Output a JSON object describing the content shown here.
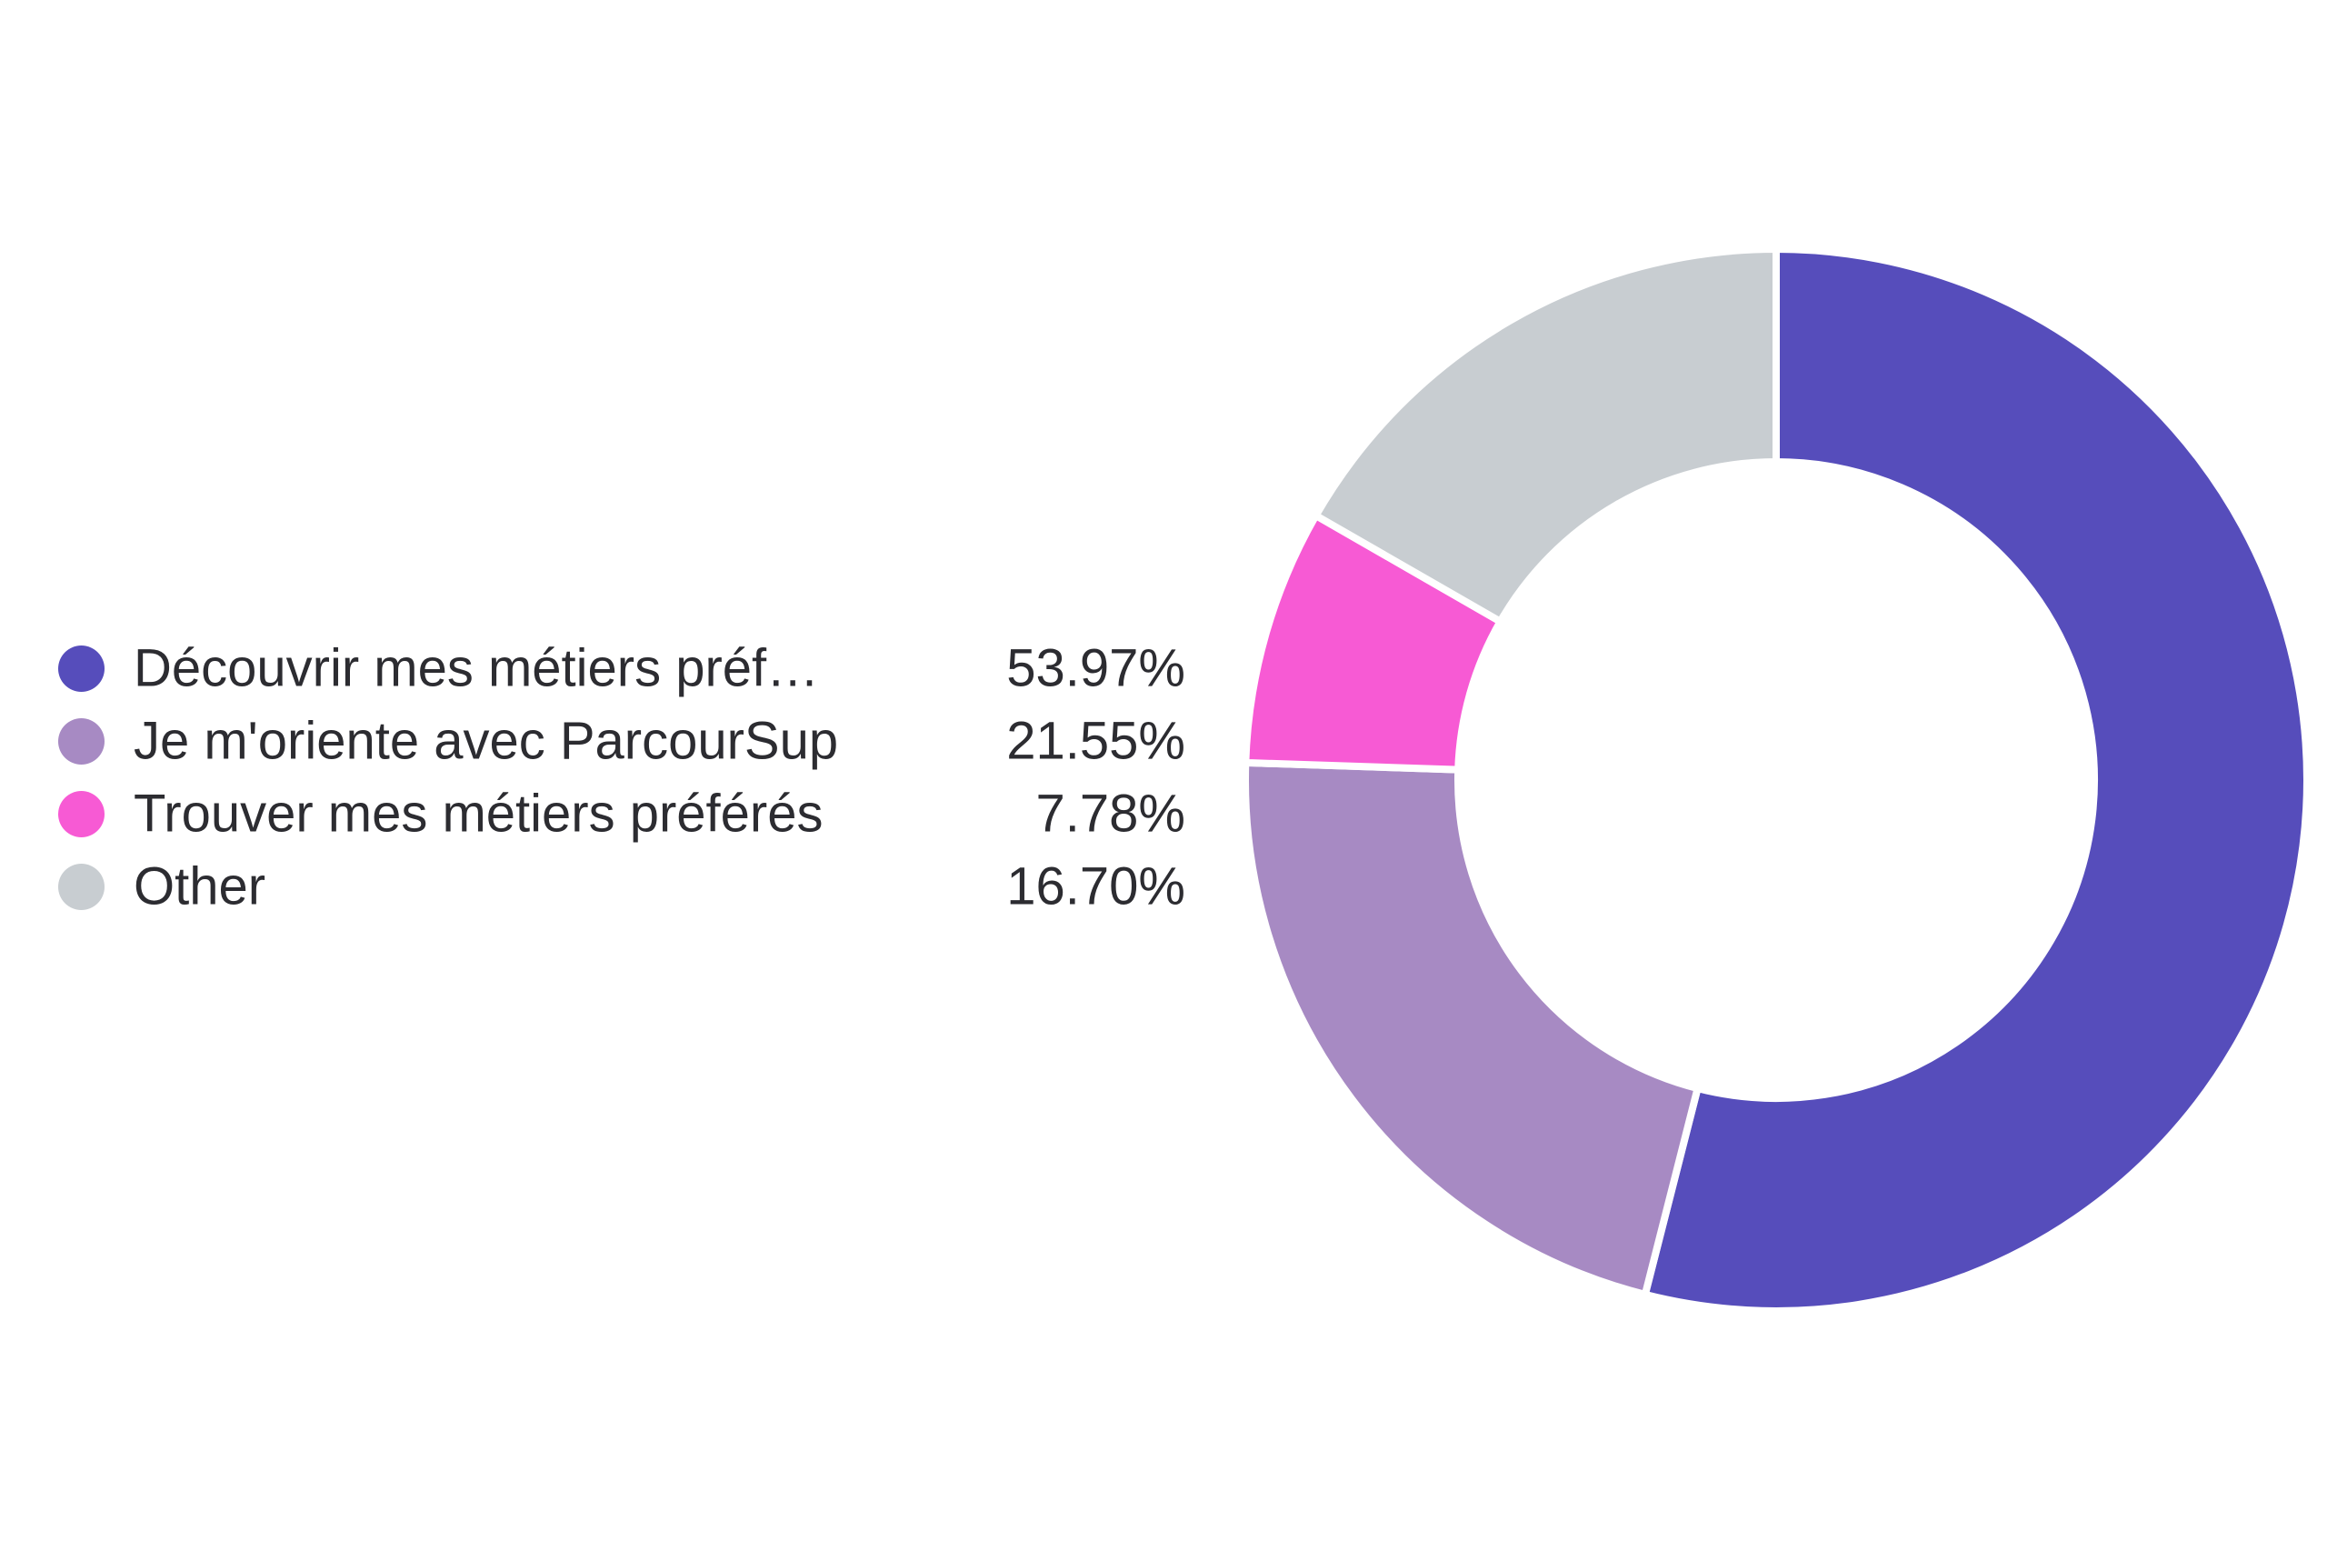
{
  "chart_data": {
    "type": "pie",
    "variant": "donut",
    "categories": [
      "Découvrir mes métiers préf…",
      "Je m'oriente avec ParcourSup",
      "Trouver mes métiers préférés",
      "Other"
    ],
    "values": [
      53.97,
      21.55,
      7.78,
      16.7
    ],
    "value_labels": [
      "53.97%",
      "21.55%",
      "7.78%",
      "16.70%"
    ],
    "colors": [
      "#564dbb",
      "#a78ac3",
      "#f75ad4",
      "#c8cdd1"
    ],
    "legend_placement": "left",
    "start_angle": "top",
    "direction": "clockwise"
  }
}
